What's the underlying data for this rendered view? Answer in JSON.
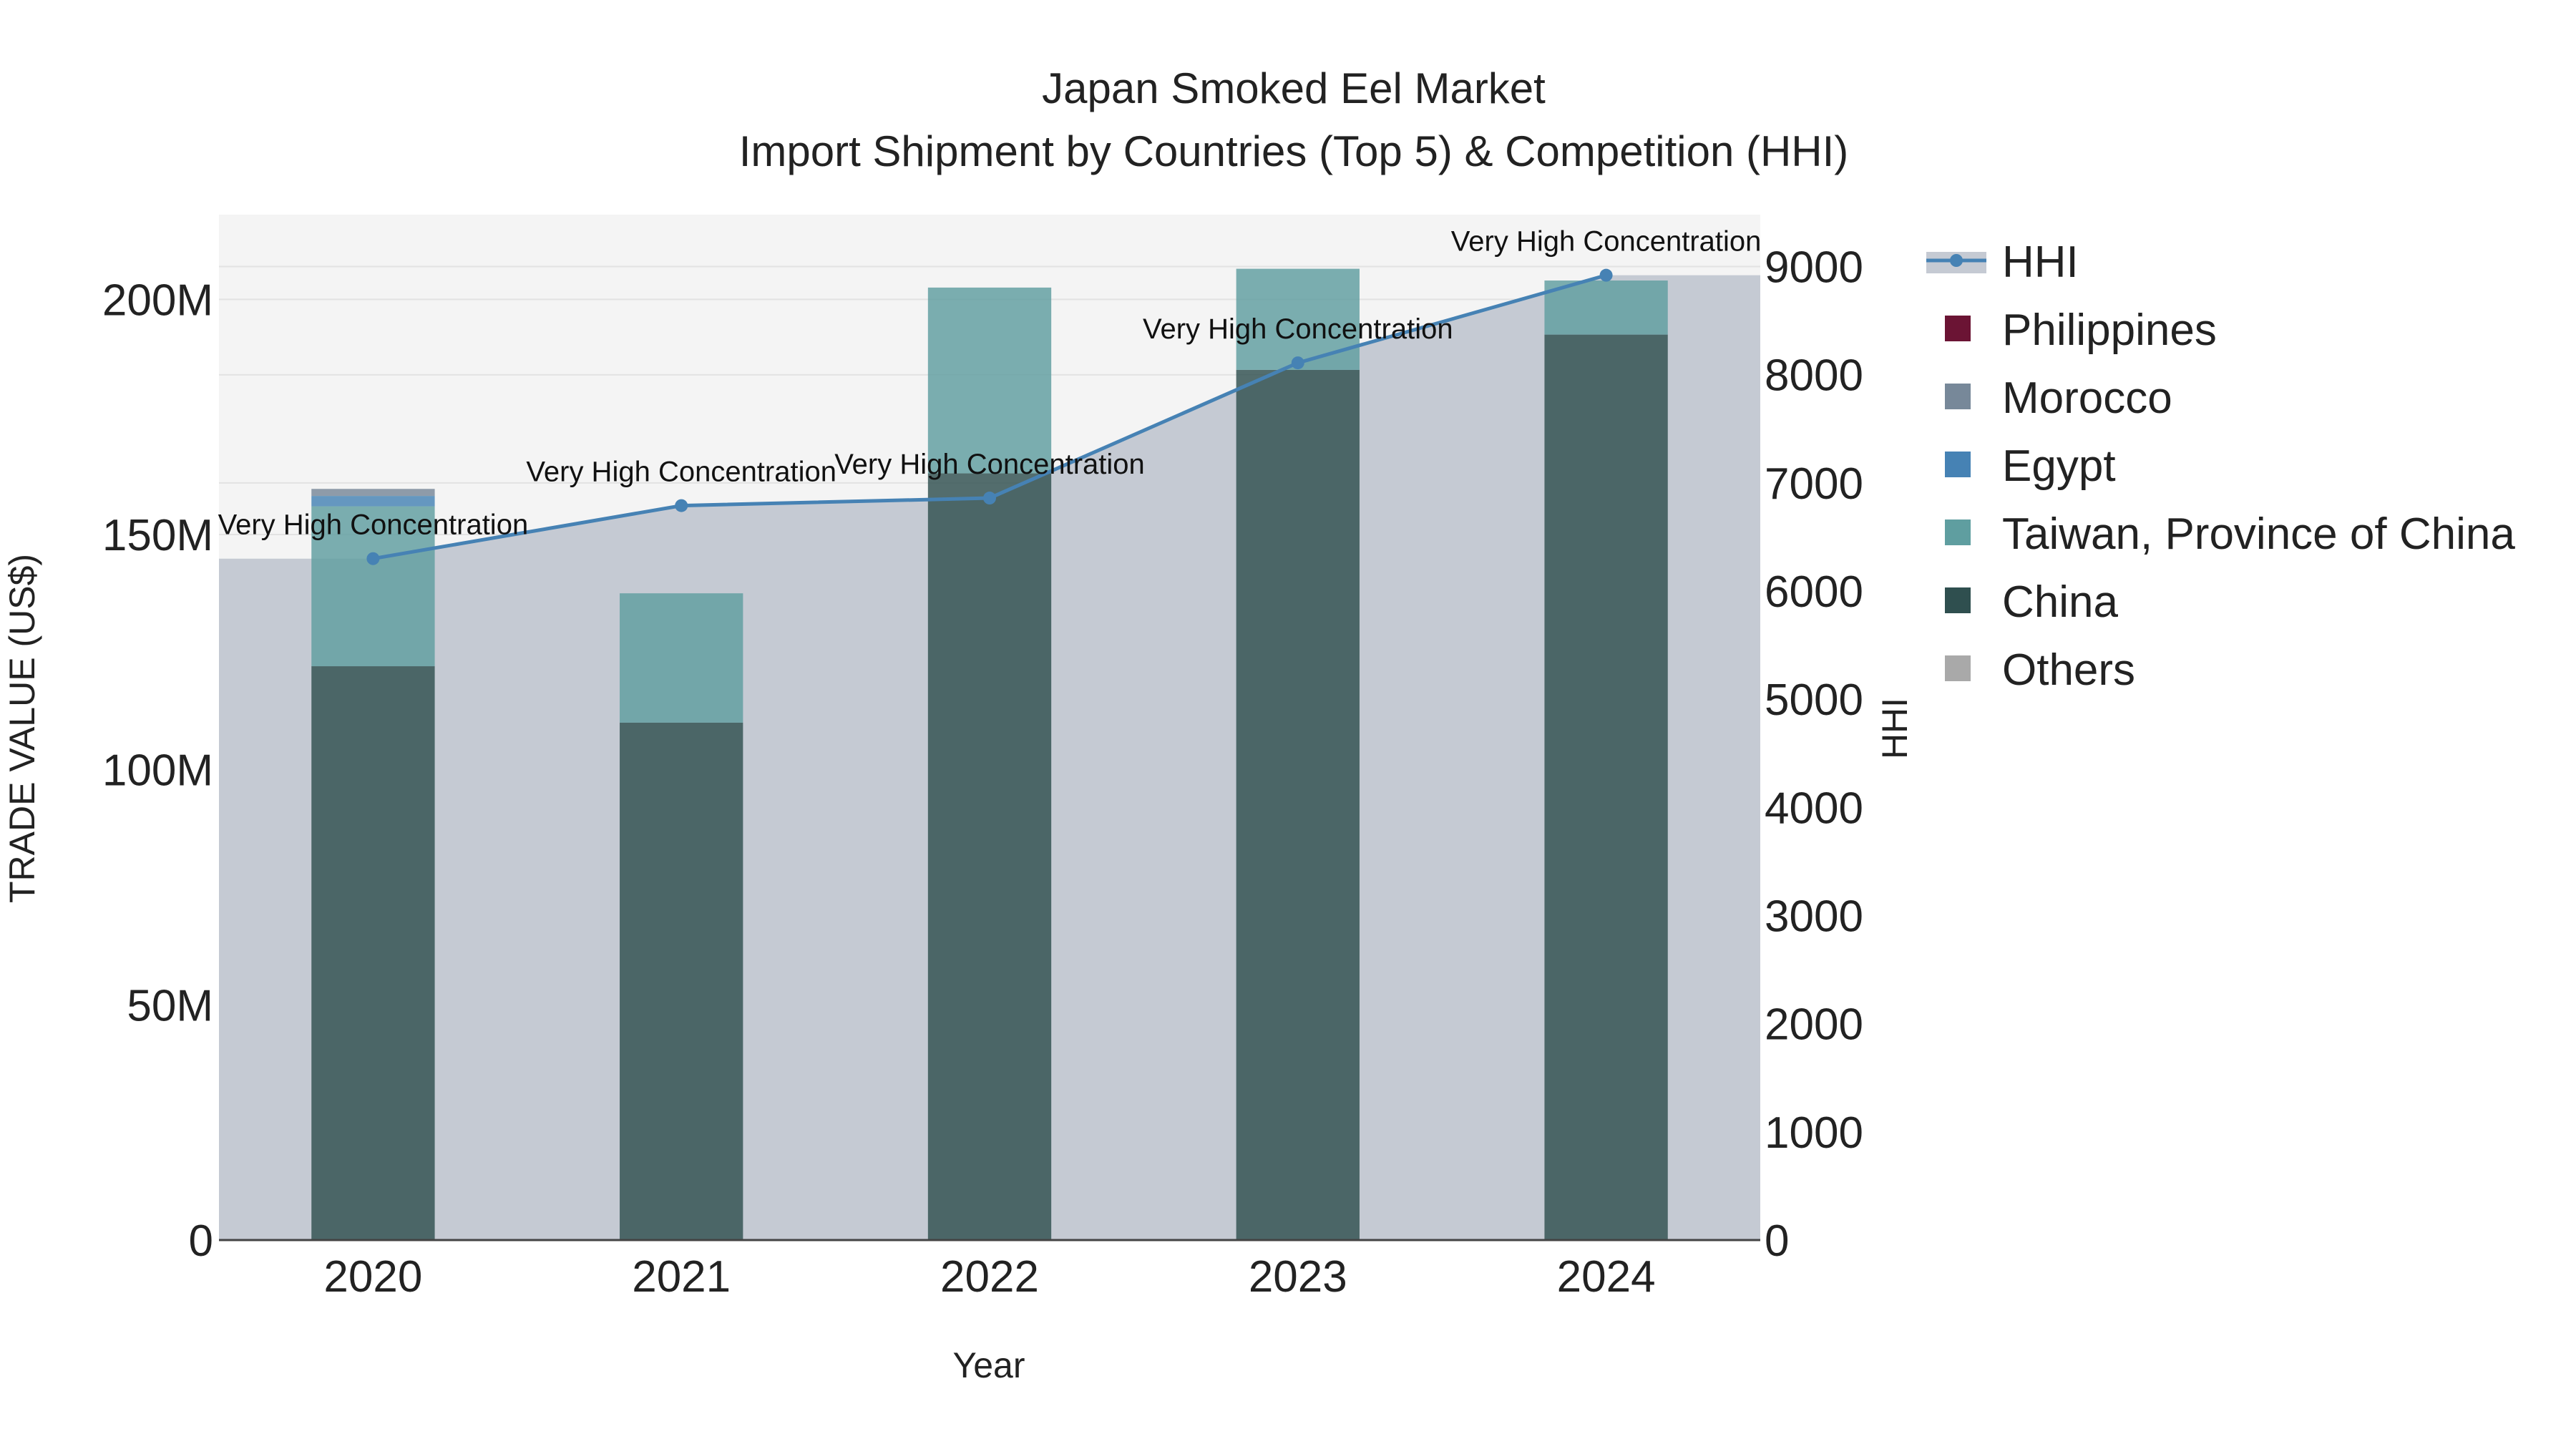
{
  "chart_data": {
    "type": "bar",
    "title_line1": "Japan Smoked Eel Market",
    "title_line2": "Import Shipment by Countries (Top 5) & Competition (HHI)",
    "xlabel": "Year",
    "ylabel_left": "TRADE VALUE (US$)",
    "ylabel_right": "HHI",
    "categories": [
      "2020",
      "2021",
      "2022",
      "2023",
      "2024"
    ],
    "ylim_left": [
      0,
      218000000
    ],
    "ylim_right": [
      0,
      9480
    ],
    "yticks_left": [
      {
        "value": 0,
        "label": "0"
      },
      {
        "value": 50000000,
        "label": "50M"
      },
      {
        "value": 100000000,
        "label": "100M"
      },
      {
        "value": 150000000,
        "label": "150M"
      },
      {
        "value": 200000000,
        "label": "200M"
      }
    ],
    "yticks_right": [
      {
        "value": 0,
        "label": "0"
      },
      {
        "value": 1000,
        "label": "1000"
      },
      {
        "value": 2000,
        "label": "2000"
      },
      {
        "value": 3000,
        "label": "3000"
      },
      {
        "value": 4000,
        "label": "4000"
      },
      {
        "value": 5000,
        "label": "5000"
      },
      {
        "value": 6000,
        "label": "6000"
      },
      {
        "value": 7000,
        "label": "7000"
      },
      {
        "value": 8000,
        "label": "8000"
      },
      {
        "value": 9000,
        "label": "9000"
      }
    ],
    "series": [
      {
        "name": "China",
        "color": "#2f4f4f",
        "values": [
          122000000,
          110000000,
          163000000,
          185000000,
          192500000
        ]
      },
      {
        "name": "Taiwan, Province of China",
        "color": "#5f9ea0",
        "values": [
          34000000,
          27500000,
          39500000,
          21500000,
          11500000
        ]
      },
      {
        "name": "Egypt",
        "color": "#4682b4",
        "values": [
          2200000,
          0,
          0,
          0,
          0
        ]
      },
      {
        "name": "Morocco",
        "color": "#778899",
        "values": [
          1500000,
          0,
          0,
          0,
          0
        ]
      },
      {
        "name": "Philippines",
        "color": "#6b1434",
        "values": [
          0,
          0,
          0,
          0,
          0
        ]
      },
      {
        "name": "Others",
        "color": "#a9a9a9",
        "values": [
          0,
          0,
          0,
          0,
          0
        ]
      }
    ],
    "hhi": {
      "name": "HHI",
      "color": "#4682b4",
      "values": [
        6300,
        6790,
        6860,
        8110,
        8920
      ],
      "annotations": [
        "Very High Concentration",
        "Very High Concentration",
        "Very High Concentration",
        "Very High Concentration",
        "Very High Concentration"
      ]
    },
    "legend": [
      "HHI",
      "Philippines",
      "Morocco",
      "Egypt",
      "Taiwan, Province of China",
      "China",
      "Others"
    ],
    "colors": {
      "plot_bg": "#f4f4f4",
      "grid": "#e2e2e2",
      "area_fill": "#c5cad3",
      "axis_line": "#444444"
    }
  }
}
